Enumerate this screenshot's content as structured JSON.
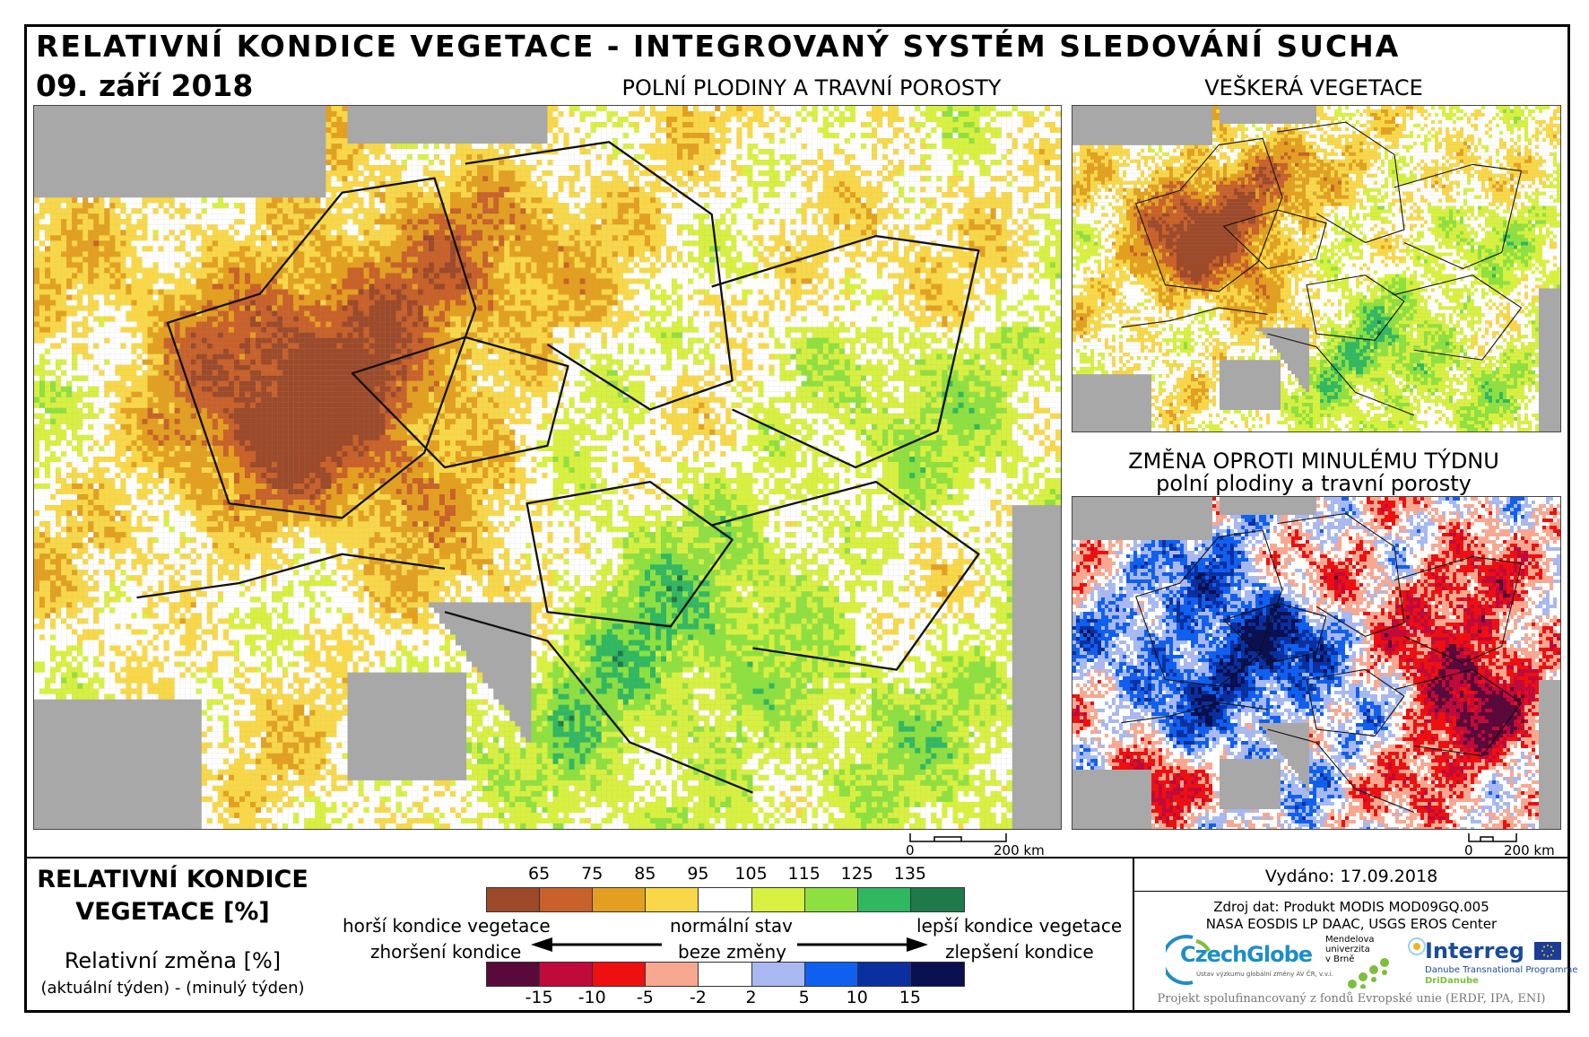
{
  "header": {
    "title": "RELATIVNÍ KONDICE VEGETACE - INTEGROVANÝ SYSTÉM SLEDOVÁNÍ SUCHA",
    "date": "09. září 2018"
  },
  "maps": {
    "main_title": "POLNÍ PLODINY A TRAVNÍ POROSTY",
    "top_right_title": "VEŠKERÁ VEGETACE",
    "bottom_right_title_1": "ZMĚNA OPROTI MINULÉMU TÝDNU",
    "bottom_right_title_2": "polní plodiny a travní porosty"
  },
  "scale": {
    "main_zero": "0",
    "main_label": "200 km",
    "small_zero": "0",
    "small_label": "200 km"
  },
  "legend": {
    "title_line1": "RELATIVNÍ KONDICE",
    "title_line2": "VEGETACE [%]",
    "change_title": "Relativní změna [%]",
    "change_sub": "(aktuální týden) - (minulý týden)",
    "condition_ticks": [
      "65",
      "75",
      "85",
      "95",
      "105",
      "115",
      "125",
      "135"
    ],
    "condition_colors": [
      "#9c4a2a",
      "#c8612a",
      "#e3a020",
      "#f8d848",
      "#ffffff",
      "#d8f040",
      "#8ee040",
      "#30b860",
      "#1f7a4a"
    ],
    "change_ticks": [
      "-15",
      "-10",
      "-5",
      "-2",
      "2",
      "5",
      "10",
      "15"
    ],
    "change_colors": [
      "#5a0a3a",
      "#c00a3a",
      "#ee1010",
      "#f8a890",
      "#ffffff",
      "#a8b8f0",
      "#1060f0",
      "#0a30a0",
      "#0a1050"
    ],
    "left_top": "horší kondice vegetace",
    "left_bottom": "zhoršení kondice",
    "center_top": "normální stav",
    "center_bottom": "beze změny",
    "right_top": "lepší kondice vegetace",
    "right_bottom": "zlepšení kondice"
  },
  "info": {
    "issued": "Vydáno: 17.09.2018",
    "source_1": "Zdroj dat: Produkt MODIS MOD09GQ.005",
    "source_2": "NASA EOSDIS LP DAAC, USGS EROS Center",
    "logo_czechglobe": "CzechGlobe",
    "logo_czechglobe_sub": "Ústav výzkumu globální změny AV ČR, v.v.i.",
    "logo_mendel_1": "Mendelova",
    "logo_mendel_2": "univerzita",
    "logo_mendel_3": "v Brně",
    "logo_interreg": "Interreg",
    "logo_interreg_sub": "Danube Transnational Programme",
    "logo_dridanube": "DriDanube",
    "funding": "Projekt spolufinancovaný z fondů Evropské unie (ERDF, IPA, ENI)"
  }
}
